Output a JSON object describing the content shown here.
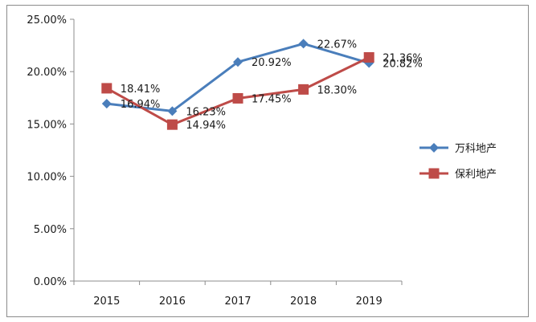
{
  "chart_data": {
    "type": "line",
    "categories": [
      "2015",
      "2016",
      "2017",
      "2018",
      "2019"
    ],
    "series": [
      {
        "name": "万科地产",
        "values": [
          16.94,
          16.23,
          20.92,
          22.67,
          20.82
        ],
        "labels": [
          "16.94%",
          "16.23%",
          "20.92%",
          "22.67%",
          "20.82%"
        ],
        "color": "#4a7ebb",
        "marker": "diamond"
      },
      {
        "name": "保利地产",
        "values": [
          18.41,
          14.94,
          17.45,
          18.3,
          21.36
        ],
        "labels": [
          "18.41%",
          "14.94%",
          "17.45%",
          "18.30%",
          "21.36%"
        ],
        "color": "#be4b48",
        "marker": "square"
      }
    ],
    "yticks": [
      "0.00%",
      "5.00%",
      "10.00%",
      "15.00%",
      "20.00%",
      "25.00%"
    ],
    "ylim": [
      0,
      25
    ],
    "legend_position": "right",
    "grid": false
  }
}
